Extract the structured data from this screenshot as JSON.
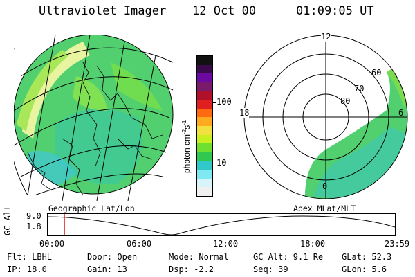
{
  "header": {
    "title": "Ultraviolet Imager",
    "date": "12 Oct 00",
    "time": "01:09:05 UT"
  },
  "left_panel": {
    "caption": "Geographic Lat/Lon"
  },
  "right_panel": {
    "caption": "Apex MLat/MLT",
    "mlt_labels": [
      "12",
      "18",
      "6",
      "0"
    ],
    "mlat_labels": [
      "60",
      "70",
      "80"
    ]
  },
  "colorbar": {
    "unit_label": "photon cm",
    "unit_exp1": "-2",
    "unit_mid": "s",
    "unit_exp2": "-1",
    "ticks": [
      "100",
      "10"
    ],
    "colors_top_to_bottom": [
      "#111111",
      "#3a0a4a",
      "#6a0aa0",
      "#7a1a6a",
      "#b0102a",
      "#e02020",
      "#ff6a10",
      "#ffaa20",
      "#f0e040",
      "#c8f020",
      "#70e030",
      "#30c850",
      "#30c8c8",
      "#80e8f0",
      "#d8f4f8",
      "#f0f0f0"
    ]
  },
  "altitude_strip": {
    "axis_label": "GC Alt",
    "y_ticks": [
      "9.0",
      "1.8"
    ],
    "x_ticks": [
      "00:00",
      "06:00",
      "12:00",
      "18:00",
      "23:59"
    ],
    "current_time_fraction": 0.0479
  },
  "info": {
    "flt": "Flt: LBHL",
    "ip": "IP: 18.0",
    "door": "Door: Open",
    "gain": "Gain: 13",
    "mode": "Mode: Normal",
    "dsp": "Dsp:    -2.2",
    "gcalt": "GC Alt: 9.1 Re",
    "seq": "Seq: 39",
    "glat": "GLat:  52.3",
    "glon": "GLon:    5.6"
  }
}
